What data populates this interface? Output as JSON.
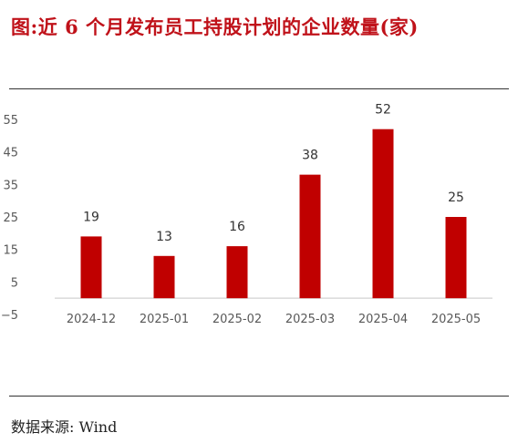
{
  "header": {
    "title": "图:近 6 个月发布员工持股计划的企业数量(家)"
  },
  "footer": {
    "source": "数据来源: Wind"
  },
  "colors": {
    "bar": "#c00000",
    "axis_text": "#595959",
    "label_text": "#333333",
    "baseline": "#d9d9d9"
  },
  "chart_data": {
    "type": "bar",
    "title": "",
    "xlabel": "",
    "ylabel": "",
    "categories": [
      "2024-12",
      "2025-01",
      "2025-02",
      "2025-03",
      "2025-04",
      "2025-05"
    ],
    "values": [
      19,
      13,
      16,
      38,
      52,
      25
    ],
    "ylim": [
      -5,
      55
    ],
    "yticks": [
      -5,
      5,
      15,
      25,
      35,
      45,
      55
    ],
    "ytick_labels": [
      "−5",
      "5",
      "15",
      "25",
      "35",
      "45",
      "55"
    ],
    "data_labels": true,
    "grid": false,
    "legend": "none"
  }
}
